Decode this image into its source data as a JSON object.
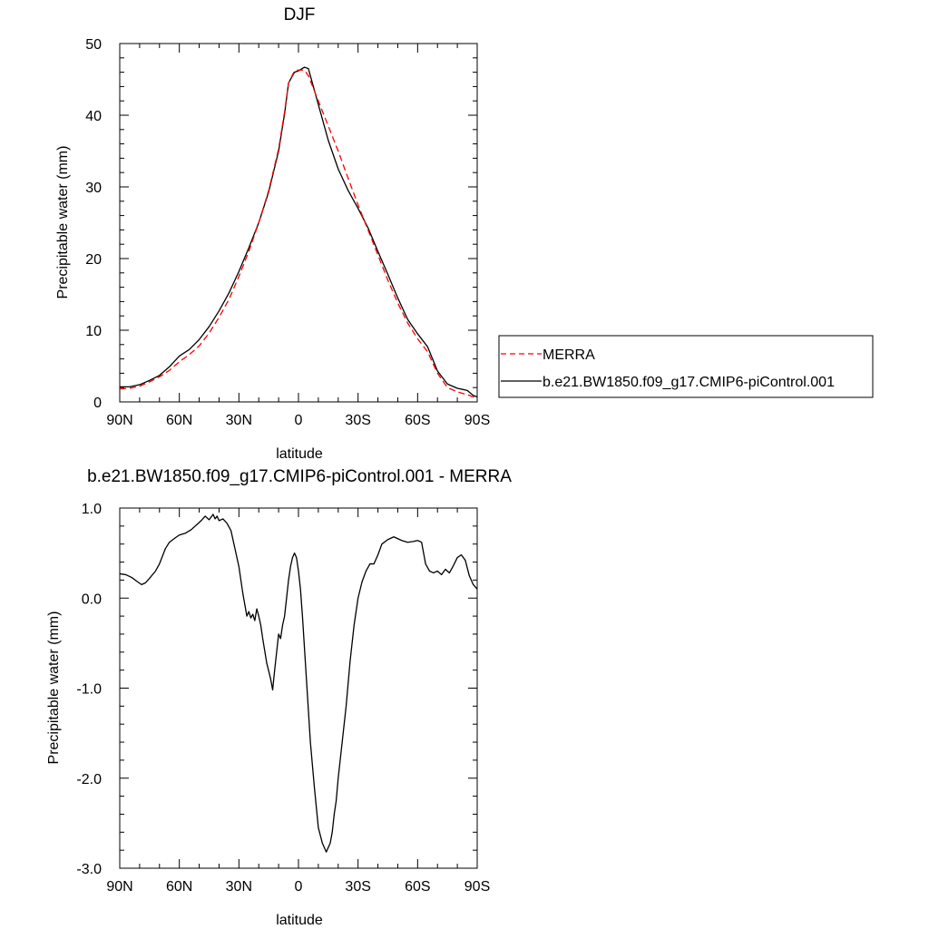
{
  "chart_data": [
    {
      "type": "line",
      "title": "DJF",
      "xlabel": "latitude",
      "ylabel": "Precipitable water (mm)",
      "xlim": [
        90,
        -90
      ],
      "ylim": [
        0,
        50
      ],
      "x_ticks": [
        90,
        60,
        30,
        0,
        -30,
        -60,
        -90
      ],
      "x_tick_labels": [
        "90N",
        "60N",
        "30N",
        "0",
        "30S",
        "60S",
        "90S"
      ],
      "y_ticks": [
        0,
        10,
        20,
        30,
        40,
        50
      ],
      "y_tick_labels": [
        "0",
        "10",
        "20",
        "30",
        "40",
        "50"
      ],
      "legend_position": "right",
      "series": [
        {
          "name": "MERRA",
          "color": "#ff0000",
          "dash": "dashed",
          "x": [
            90,
            85,
            80,
            75,
            70,
            65,
            60,
            55,
            50,
            45,
            40,
            35,
            30,
            25,
            20,
            15,
            10,
            7,
            5,
            2,
            0,
            -3,
            -5,
            -10,
            -15,
            -20,
            -25,
            -30,
            -35,
            -40,
            -45,
            -50,
            -55,
            -60,
            -65,
            -70,
            -75,
            -80,
            -85,
            -88,
            -90
          ],
          "y": [
            1.8,
            1.9,
            2.2,
            2.8,
            3.5,
            4.4,
            5.6,
            6.6,
            7.8,
            9.6,
            11.8,
            14.3,
            17.5,
            21.0,
            25.0,
            29.5,
            35.3,
            40.5,
            44.5,
            46.2,
            46.3,
            46.3,
            45.5,
            42.0,
            38.5,
            35.0,
            31.2,
            27.5,
            24.0,
            20.5,
            17.0,
            13.8,
            11.0,
            8.8,
            7.0,
            4.0,
            2.0,
            1.4,
            1.0,
            0.7,
            0.7
          ]
        },
        {
          "name": "b.e21.BW1850.f09_g17.CMIP6-piControl.001",
          "color": "#000000",
          "dash": "solid",
          "x": [
            90,
            85,
            80,
            75,
            70,
            65,
            60,
            55,
            50,
            45,
            40,
            35,
            30,
            25,
            20,
            15,
            10,
            7,
            5,
            2,
            0,
            -3,
            -5,
            -10,
            -15,
            -20,
            -25,
            -30,
            -35,
            -40,
            -45,
            -50,
            -55,
            -60,
            -65,
            -70,
            -75,
            -80,
            -85,
            -88,
            -90
          ],
          "y": [
            2.1,
            2.1,
            2.4,
            3.0,
            3.7,
            4.9,
            6.4,
            7.3,
            8.7,
            10.5,
            12.7,
            15.2,
            18.2,
            21.5,
            25.0,
            29.3,
            35.0,
            40.2,
            44.5,
            46.0,
            46.2,
            46.7,
            46.5,
            41.5,
            36.5,
            32.5,
            29.5,
            27.0,
            24.3,
            21.0,
            17.8,
            14.5,
            11.5,
            9.5,
            7.7,
            4.3,
            2.5,
            1.9,
            1.6,
            0.9,
            0.7
          ]
        }
      ]
    },
    {
      "type": "line",
      "title": "b.e21.BW1850.f09_g17.CMIP6-piControl.001 - MERRA",
      "xlabel": "latitude",
      "ylabel": "Precipitable water (mm)",
      "xlim": [
        90,
        -90
      ],
      "ylim": [
        -3,
        1
      ],
      "x_ticks": [
        90,
        60,
        30,
        0,
        -30,
        -60,
        -90
      ],
      "x_tick_labels": [
        "90N",
        "60N",
        "30N",
        "0",
        "30S",
        "60S",
        "90S"
      ],
      "y_ticks": [
        1,
        0,
        -1,
        -2,
        -3
      ],
      "y_tick_labels": [
        "1.0",
        "0.0",
        "-1.0",
        "-2.0",
        "-3.0"
      ],
      "series": [
        {
          "color": "#000000",
          "dash": "solid",
          "x": [
            90,
            87,
            84,
            81,
            79,
            77,
            75,
            72,
            70,
            67,
            65,
            62,
            60,
            57,
            54,
            51,
            49,
            47,
            45,
            43,
            42,
            41,
            40,
            38,
            36,
            34,
            32,
            30,
            28,
            26,
            25,
            24,
            23,
            22,
            21,
            20,
            19,
            18,
            16,
            14,
            13,
            12,
            11,
            10,
            9,
            8,
            7,
            6,
            5,
            4,
            3,
            2,
            1,
            0,
            -1,
            -2,
            -3,
            -4,
            -5,
            -6,
            -8,
            -10,
            -12,
            -14,
            -16,
            -17,
            -18,
            -19,
            -20,
            -22,
            -24,
            -26,
            -28,
            -30,
            -32,
            -34,
            -36,
            -38,
            -40,
            -42,
            -45,
            -48,
            -50,
            -52,
            -55,
            -58,
            -60,
            -62,
            -63,
            -64,
            -66,
            -68,
            -70,
            -72,
            -74,
            -76,
            -78,
            -80,
            -82,
            -84,
            -86,
            -88,
            -90
          ],
          "y": [
            0.27,
            0.26,
            0.23,
            0.18,
            0.15,
            0.17,
            0.22,
            0.3,
            0.38,
            0.55,
            0.62,
            0.67,
            0.7,
            0.72,
            0.76,
            0.82,
            0.86,
            0.91,
            0.87,
            0.93,
            0.88,
            0.91,
            0.86,
            0.88,
            0.83,
            0.75,
            0.55,
            0.35,
            0.05,
            -0.2,
            -0.15,
            -0.22,
            -0.18,
            -0.25,
            -0.12,
            -0.2,
            -0.3,
            -0.45,
            -0.72,
            -0.9,
            -1.02,
            -0.8,
            -0.6,
            -0.4,
            -0.45,
            -0.3,
            -0.2,
            0.0,
            0.2,
            0.35,
            0.45,
            0.5,
            0.45,
            0.3,
            0.1,
            -0.2,
            -0.55,
            -0.9,
            -1.25,
            -1.6,
            -2.1,
            -2.55,
            -2.72,
            -2.82,
            -2.72,
            -2.6,
            -2.4,
            -2.25,
            -2.0,
            -1.6,
            -1.2,
            -0.7,
            -0.3,
            0.0,
            0.18,
            0.3,
            0.38,
            0.38,
            0.48,
            0.6,
            0.65,
            0.68,
            0.66,
            0.64,
            0.62,
            0.63,
            0.64,
            0.62,
            0.5,
            0.38,
            0.3,
            0.28,
            0.3,
            0.26,
            0.32,
            0.28,
            0.36,
            0.45,
            0.48,
            0.42,
            0.25,
            0.15,
            0.1
          ]
        }
      ]
    }
  ]
}
